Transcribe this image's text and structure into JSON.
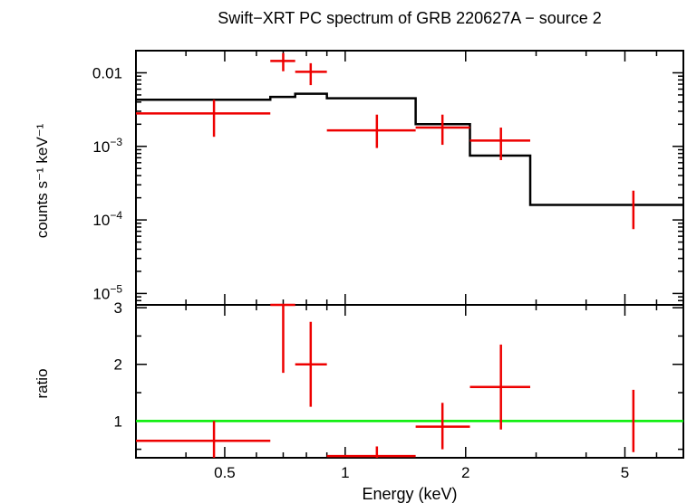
{
  "chart_data": [
    {
      "panel": "spectrum",
      "type": "scatter",
      "title": "Swift−XRT PC spectrum of GRB 220627A − source 2",
      "ylabel": "counts s⁻¹ keV⁻¹",
      "xlabel": "",
      "xscale": "log",
      "yscale": "log",
      "xlim": [
        0.3,
        7.0
      ],
      "ylim": [
        7e-06,
        0.02
      ],
      "x_ticks": [
        0.5,
        1,
        2,
        5
      ],
      "y_ticks": [
        {
          "value": 0.01,
          "label": "0.01"
        },
        {
          "value": 0.001,
          "base": "10",
          "exp": "−3"
        },
        {
          "value": 0.0001,
          "base": "10",
          "exp": "−4"
        },
        {
          "value": 1e-05,
          "base": "10",
          "exp": "−5"
        }
      ],
      "data_points": {
        "color": "#ee0000",
        "points": [
          {
            "x": 0.47,
            "xlo": 0.3,
            "xhi": 0.65,
            "y": 0.0028,
            "ylo": 0.00135,
            "yhi": 0.0043
          },
          {
            "x": 0.7,
            "xlo": 0.65,
            "xhi": 0.75,
            "y": 0.0145,
            "ylo": 0.0105,
            "yhi": 0.0185
          },
          {
            "x": 0.82,
            "xlo": 0.75,
            "xhi": 0.9,
            "y": 0.0103,
            "ylo": 0.0068,
            "yhi": 0.0135
          },
          {
            "x": 1.2,
            "xlo": 0.9,
            "xhi": 1.5,
            "y": 0.00165,
            "ylo": 0.00095,
            "yhi": 0.0027
          },
          {
            "x": 1.75,
            "xlo": 1.5,
            "xhi": 2.05,
            "y": 0.0018,
            "ylo": 0.00105,
            "yhi": 0.0027
          },
          {
            "x": 2.45,
            "xlo": 2.05,
            "xhi": 2.9,
            "y": 0.0012,
            "ylo": 0.00065,
            "yhi": 0.0018
          },
          {
            "x": 5.25,
            "xlo": 5.25,
            "xhi": 5.25,
            "y": 0.000145,
            "ylo": 7.5e-05,
            "yhi": 0.00025
          }
        ]
      },
      "model": {
        "color": "#000000",
        "steps": [
          {
            "x0": 0.3,
            "x1": 0.65,
            "y": 0.0043
          },
          {
            "x0": 0.65,
            "x1": 0.75,
            "y": 0.0047
          },
          {
            "x0": 0.75,
            "x1": 0.9,
            "y": 0.0052
          },
          {
            "x0": 0.9,
            "x1": 1.5,
            "y": 0.0045
          },
          {
            "x0": 1.5,
            "x1": 2.05,
            "y": 0.002
          },
          {
            "x0": 2.05,
            "x1": 2.9,
            "y": 0.00075
          },
          {
            "x0": 2.9,
            "x1": 7.0,
            "y": 0.00016
          }
        ]
      }
    },
    {
      "panel": "ratio",
      "type": "scatter",
      "ylabel": "ratio",
      "xlabel": "Energy (keV)",
      "xscale": "log",
      "yscale": "linear",
      "xlim": [
        0.3,
        7.0
      ],
      "ylim": [
        0.35,
        3.05
      ],
      "x_ticks": [
        0.5,
        1,
        2,
        5
      ],
      "x_tick_labels": [
        "0.5",
        "1",
        "2",
        "5"
      ],
      "y_ticks": [
        1,
        2,
        3
      ],
      "y_tick_labels": [
        "1",
        "2",
        "3"
      ],
      "reference_line": {
        "y": 1,
        "color": "#00ee00"
      },
      "data_points": {
        "color": "#ee0000",
        "points": [
          {
            "x": 0.47,
            "xlo": 0.3,
            "xhi": 0.65,
            "y": 0.65,
            "ylo": 0.35,
            "yhi": 1.0
          },
          {
            "x": 0.7,
            "xlo": 0.65,
            "xhi": 0.75,
            "y": 3.05,
            "ylo": 1.85,
            "yhi": 3.05
          },
          {
            "x": 0.82,
            "xlo": 0.75,
            "xhi": 0.9,
            "y": 2.0,
            "ylo": 1.25,
            "yhi": 2.75
          },
          {
            "x": 1.2,
            "xlo": 0.9,
            "xhi": 1.5,
            "y": 0.38,
            "ylo": 0.35,
            "yhi": 0.55
          },
          {
            "x": 1.75,
            "xlo": 1.5,
            "xhi": 2.05,
            "y": 0.9,
            "ylo": 0.5,
            "yhi": 1.32
          },
          {
            "x": 2.45,
            "xlo": 2.05,
            "xhi": 2.9,
            "y": 1.6,
            "ylo": 0.85,
            "yhi": 2.35
          },
          {
            "x": 5.25,
            "xlo": 5.25,
            "xhi": 5.25,
            "y": 1.0,
            "ylo": 0.45,
            "yhi": 1.55
          }
        ]
      }
    }
  ]
}
